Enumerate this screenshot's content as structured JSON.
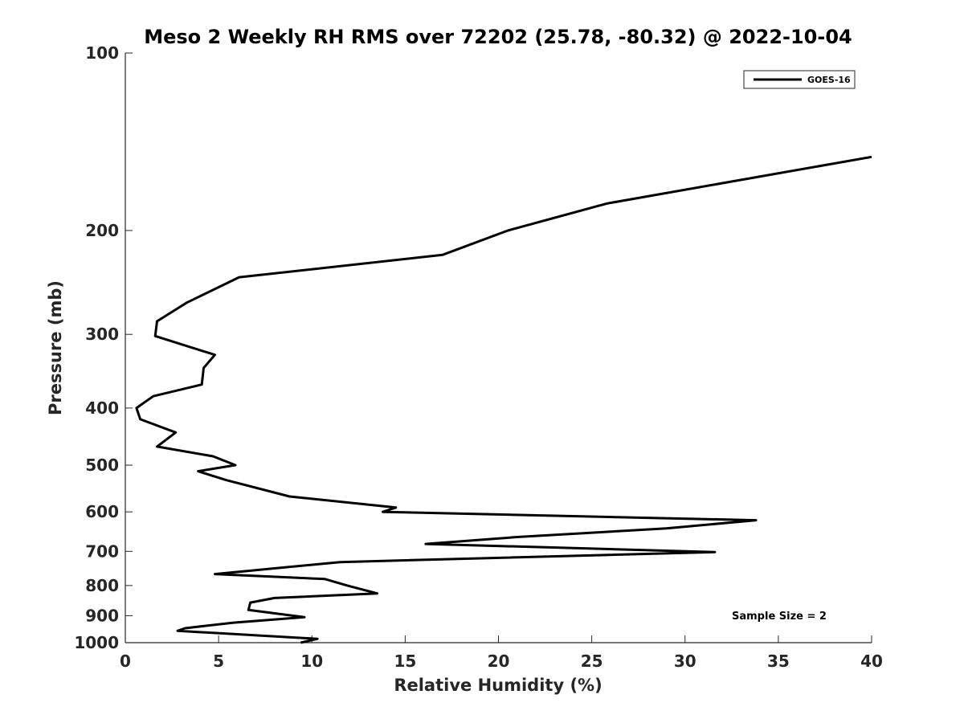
{
  "chart_data": {
    "type": "line",
    "title": "Meso 2 Weekly RH RMS over 72202 (25.78, -80.32) @ 2022-10-04",
    "xlabel": "Relative Humidity (%)",
    "ylabel": "Pressure (mb)",
    "xlim": [
      0,
      40
    ],
    "ylim": [
      100,
      1000
    ],
    "yscale": "log",
    "reverse_y": true,
    "grid": false,
    "x_ticks": [
      0,
      5,
      10,
      15,
      20,
      25,
      30,
      35,
      40
    ],
    "x_tick_labels": [
      "0",
      "5",
      "10",
      "15",
      "20",
      "25",
      "30",
      "35",
      "40"
    ],
    "y_ticks": [
      100,
      200,
      300,
      400,
      500,
      600,
      700,
      800,
      900,
      1000
    ],
    "y_tick_labels": [
      "100",
      "200",
      "300",
      "400",
      "500",
      "600",
      "700",
      "800",
      "900",
      "1000"
    ],
    "legend": {
      "position": "top-right",
      "entries": [
        "GOES-16"
      ]
    },
    "annotation": "Sample Size = 2",
    "series": [
      {
        "name": "GOES-16",
        "color": "#000000",
        "points": [
          [
            40.0,
            150
          ],
          [
            25.8,
            180
          ],
          [
            20.5,
            200
          ],
          [
            17.0,
            220
          ],
          [
            6.1,
            240
          ],
          [
            3.3,
            265
          ],
          [
            1.7,
            285
          ],
          [
            1.6,
            302
          ],
          [
            4.8,
            325
          ],
          [
            4.2,
            342
          ],
          [
            4.1,
            365
          ],
          [
            1.5,
            382
          ],
          [
            0.6,
            400
          ],
          [
            0.8,
            418
          ],
          [
            2.7,
            440
          ],
          [
            1.7,
            465
          ],
          [
            4.7,
            483
          ],
          [
            5.9,
            500
          ],
          [
            3.9,
            512
          ],
          [
            5.4,
            530
          ],
          [
            8.8,
            565
          ],
          [
            14.5,
            590
          ],
          [
            13.8,
            600
          ],
          [
            33.8,
            620
          ],
          [
            29.0,
            640
          ],
          [
            21.0,
            662
          ],
          [
            16.1,
            680
          ],
          [
            31.6,
            702
          ],
          [
            11.5,
            730
          ],
          [
            4.8,
            765
          ],
          [
            10.7,
            780
          ],
          [
            11.9,
            800
          ],
          [
            13.5,
            825
          ],
          [
            8.0,
            840
          ],
          [
            6.7,
            855
          ],
          [
            6.6,
            880
          ],
          [
            9.6,
            905
          ],
          [
            5.8,
            925
          ],
          [
            3.2,
            945
          ],
          [
            2.8,
            955
          ],
          [
            10.3,
            985
          ],
          [
            9.4,
            1000
          ]
        ]
      }
    ]
  }
}
